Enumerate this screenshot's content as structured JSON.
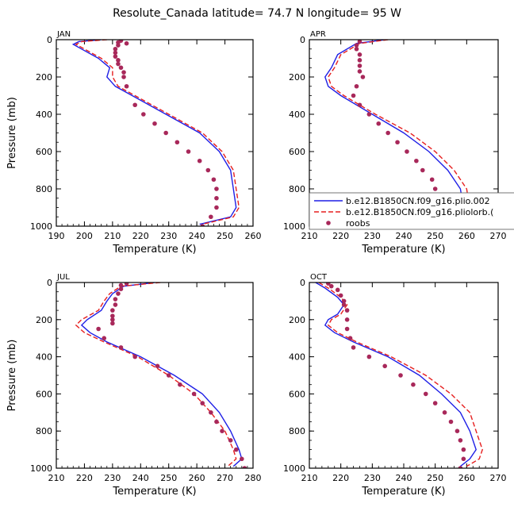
{
  "title": "Resolute_Canada   latitude= 74.7 N longitude= 95 W",
  "colors": {
    "model1": "#1f1fe6",
    "model2": "#e61f1f",
    "roobs": "#a8285a"
  },
  "legend": {
    "entries": [
      {
        "label": "b.e12.B1850CN.f09_g16.plio.002",
        "style": "solid",
        "color": "#1f1fe6"
      },
      {
        "label": "b.e12.B1850CN.f09_g16.pliolorb.(",
        "style": "dashed",
        "color": "#e61f1f"
      },
      {
        "label": "roobs",
        "style": "dots",
        "color": "#a8285a"
      }
    ]
  },
  "chart_data": [
    {
      "type": "line",
      "month": "JAN",
      "xlabel": "Temperature (K)",
      "ylabel": "Pressure (mb)",
      "xlim": [
        190,
        260
      ],
      "ylim": [
        1000,
        0
      ],
      "xticks": [
        190,
        200,
        210,
        220,
        230,
        240,
        250,
        260
      ],
      "yticks": [
        0,
        200,
        400,
        600,
        800,
        1000
      ],
      "series": [
        {
          "name": "b.e12.B1850CN.f09_g16.plio.002",
          "style": "solid",
          "points": [
            [
              206,
              0
            ],
            [
              198,
              10
            ],
            [
              196,
              25
            ],
            [
              199,
              50
            ],
            [
              205,
              100
            ],
            [
              209,
              150
            ],
            [
              208,
              200
            ],
            [
              211,
              250
            ],
            [
              217,
              300
            ],
            [
              229,
              400
            ],
            [
              241,
              500
            ],
            [
              248,
              600
            ],
            [
              252,
              700
            ],
            [
              253,
              800
            ],
            [
              254,
              900
            ],
            [
              252,
              950
            ],
            [
              241,
              990
            ]
          ]
        },
        {
          "name": "b.e12.B1850CN.f09_g16.pliolorb.(",
          "style": "dashed",
          "points": [
            [
              208,
              0
            ],
            [
              199,
              10
            ],
            [
              197,
              25
            ],
            [
              200,
              50
            ],
            [
              206,
              100
            ],
            [
              210,
              150
            ],
            [
              210,
              200
            ],
            [
              212,
              250
            ],
            [
              218,
              300
            ],
            [
              230,
              400
            ],
            [
              242,
              500
            ],
            [
              249,
              600
            ],
            [
              253,
              700
            ],
            [
              254,
              800
            ],
            [
              255,
              900
            ],
            [
              253,
              950
            ],
            [
              242,
              990
            ]
          ]
        },
        {
          "name": "roobs",
          "style": "dots",
          "points": [
            [
              212,
              15
            ],
            [
              212,
              30
            ],
            [
              211,
              50
            ],
            [
              211,
              70
            ],
            [
              211,
              90
            ],
            [
              212,
              110
            ],
            [
              212,
              130
            ],
            [
              213,
              150
            ],
            [
              214,
              175
            ],
            [
              214,
              200
            ],
            [
              215,
              250
            ],
            [
              218,
              350
            ],
            [
              221,
              400
            ],
            [
              225,
              450
            ],
            [
              229,
              500
            ],
            [
              233,
              550
            ],
            [
              237,
              600
            ],
            [
              241,
              650
            ],
            [
              244,
              700
            ],
            [
              246,
              750
            ],
            [
              247,
              800
            ],
            [
              247,
              850
            ],
            [
              247,
              900
            ],
            [
              245,
              950
            ],
            [
              242,
              1000
            ],
            [
              213,
              5
            ],
            [
              215,
              20
            ]
          ]
        }
      ]
    },
    {
      "type": "line",
      "month": "APR",
      "xlabel": "Temperature (K)",
      "ylabel": "",
      "xlim": [
        210,
        270
      ],
      "ylim": [
        1000,
        0
      ],
      "xticks": [
        210,
        220,
        230,
        240,
        250,
        260,
        270
      ],
      "yticks": [
        0,
        200,
        400,
        600,
        800,
        1000
      ],
      "series": [
        {
          "name": "b.e12.B1850CN.f09_g16.plio.002",
          "style": "solid",
          "points": [
            [
              234,
              0
            ],
            [
              225,
              20
            ],
            [
              219,
              80
            ],
            [
              217,
              150
            ],
            [
              215,
              200
            ],
            [
              216,
              250
            ],
            [
              220,
              300
            ],
            [
              230,
              400
            ],
            [
              240,
              500
            ],
            [
              248,
              600
            ],
            [
              254,
              700
            ],
            [
              258,
              800
            ],
            [
              259,
              900
            ],
            [
              258,
              950
            ],
            [
              254,
              990
            ]
          ]
        },
        {
          "name": "b.e12.B1850CN.f09_g16.pliolorb.(",
          "style": "dashed",
          "points": [
            [
              235,
              0
            ],
            [
              226,
              20
            ],
            [
              220,
              80
            ],
            [
              218,
              150
            ],
            [
              216,
              200
            ],
            [
              217,
              250
            ],
            [
              221,
              300
            ],
            [
              231,
              400
            ],
            [
              242,
              500
            ],
            [
              250,
              600
            ],
            [
              256,
              700
            ],
            [
              260,
              800
            ],
            [
              261,
              900
            ],
            [
              260,
              950
            ],
            [
              256,
              990
            ]
          ]
        },
        {
          "name": "roobs",
          "style": "dots",
          "points": [
            [
              226,
              10
            ],
            [
              225,
              30
            ],
            [
              225,
              50
            ],
            [
              226,
              80
            ],
            [
              226,
              110
            ],
            [
              226,
              140
            ],
            [
              226,
              170
            ],
            [
              227,
              200
            ],
            [
              225,
              250
            ],
            [
              224,
              300
            ],
            [
              226,
              350
            ],
            [
              229,
              400
            ],
            [
              232,
              450
            ],
            [
              235,
              500
            ],
            [
              238,
              550
            ],
            [
              241,
              600
            ],
            [
              244,
              650
            ],
            [
              246,
              700
            ],
            [
              249,
              750
            ],
            [
              250,
              800
            ],
            [
              251,
              850
            ],
            [
              251,
              900
            ],
            [
              251,
              950
            ],
            [
              251,
              1000
            ]
          ]
        }
      ]
    },
    {
      "type": "line",
      "month": "JUL",
      "xlabel": "Temperature (K)",
      "ylabel": "Pressure (mb)",
      "xlim": [
        210,
        280
      ],
      "ylim": [
        1000,
        0
      ],
      "xticks": [
        210,
        220,
        230,
        240,
        250,
        260,
        270,
        280
      ],
      "yticks": [
        0,
        200,
        400,
        600,
        800,
        1000
      ],
      "series": [
        {
          "name": "b.e12.B1850CN.f09_g16.plio.002",
          "style": "solid",
          "points": [
            [
              245,
              0
            ],
            [
              234,
              20
            ],
            [
              230,
              60
            ],
            [
              228,
              100
            ],
            [
              226,
              150
            ],
            [
              221,
              200
            ],
            [
              219,
              230
            ],
            [
              222,
              270
            ],
            [
              228,
              320
            ],
            [
              240,
              400
            ],
            [
              252,
              500
            ],
            [
              262,
              600
            ],
            [
              268,
              700
            ],
            [
              272,
              800
            ],
            [
              275,
              900
            ],
            [
              276,
              950
            ],
            [
              273,
              990
            ]
          ]
        },
        {
          "name": "b.e12.B1850CN.f09_g16.pliolorb.(",
          "style": "dashed",
          "points": [
            [
              247,
              0
            ],
            [
              233,
              20
            ],
            [
              229,
              60
            ],
            [
              227,
              100
            ],
            [
              225,
              150
            ],
            [
              219,
              200
            ],
            [
              217,
              230
            ],
            [
              220,
              270
            ],
            [
              227,
              320
            ],
            [
              239,
              400
            ],
            [
              250,
              500
            ],
            [
              259,
              600
            ],
            [
              265,
              700
            ],
            [
              270,
              800
            ],
            [
              273,
              900
            ],
            [
              274,
              950
            ],
            [
              271,
              990
            ]
          ]
        },
        {
          "name": "roobs",
          "style": "dots",
          "points": [
            [
              235,
              5
            ],
            [
              233,
              15
            ],
            [
              233,
              35
            ],
            [
              232,
              60
            ],
            [
              231,
              90
            ],
            [
              231,
              120
            ],
            [
              230,
              150
            ],
            [
              230,
              180
            ],
            [
              230,
              200
            ],
            [
              230,
              220
            ],
            [
              225,
              250
            ],
            [
              227,
              300
            ],
            [
              233,
              350
            ],
            [
              238,
              400
            ],
            [
              246,
              450
            ],
            [
              250,
              500
            ],
            [
              254,
              550
            ],
            [
              259,
              600
            ],
            [
              262,
              650
            ],
            [
              265,
              700
            ],
            [
              267,
              750
            ],
            [
              269,
              800
            ],
            [
              272,
              850
            ],
            [
              274,
              900
            ],
            [
              276,
              950
            ],
            [
              277,
              1000
            ]
          ]
        }
      ]
    },
    {
      "type": "line",
      "month": "OCT",
      "xlabel": "Temperature (K)",
      "ylabel": "",
      "xlim": [
        210,
        270
      ],
      "ylim": [
        1000,
        0
      ],
      "xticks": [
        210,
        220,
        230,
        240,
        250,
        260,
        270
      ],
      "yticks": [
        0,
        200,
        400,
        600,
        800,
        1000
      ],
      "series": [
        {
          "name": "b.e12.B1850CN.f09_g16.plio.002",
          "style": "solid",
          "points": [
            [
              212,
              0
            ],
            [
              215,
              30
            ],
            [
              219,
              80
            ],
            [
              221,
              120
            ],
            [
              219,
              170
            ],
            [
              216,
              200
            ],
            [
              215,
              230
            ],
            [
              218,
              270
            ],
            [
              224,
              320
            ],
            [
              235,
              400
            ],
            [
              245,
              500
            ],
            [
              252,
              600
            ],
            [
              258,
              700
            ],
            [
              261,
              800
            ],
            [
              263,
              900
            ],
            [
              261,
              950
            ],
            [
              258,
              990
            ]
          ]
        },
        {
          "name": "b.e12.B1850CN.f09_g16.pliolorb.(",
          "style": "dashed",
          "points": [
            [
              213,
              0
            ],
            [
              216,
              30
            ],
            [
              220,
              80
            ],
            [
              222,
              120
            ],
            [
              220,
              170
            ],
            [
              217,
              200
            ],
            [
              216,
              230
            ],
            [
              219,
              270
            ],
            [
              225,
              320
            ],
            [
              236,
              400
            ],
            [
              247,
              500
            ],
            [
              255,
              600
            ],
            [
              261,
              700
            ],
            [
              263,
              800
            ],
            [
              265,
              900
            ],
            [
              264,
              950
            ],
            [
              260,
              990
            ]
          ]
        },
        {
          "name": "roobs",
          "style": "dots",
          "points": [
            [
              216,
              5
            ],
            [
              217,
              20
            ],
            [
              219,
              40
            ],
            [
              220,
              70
            ],
            [
              221,
              100
            ],
            [
              221,
              120
            ],
            [
              222,
              150
            ],
            [
              222,
              200
            ],
            [
              222,
              250
            ],
            [
              223,
              300
            ],
            [
              224,
              350
            ],
            [
              229,
              400
            ],
            [
              234,
              450
            ],
            [
              239,
              500
            ],
            [
              243,
              550
            ],
            [
              247,
              600
            ],
            [
              250,
              650
            ],
            [
              253,
              700
            ],
            [
              255,
              750
            ],
            [
              257,
              800
            ],
            [
              258,
              850
            ],
            [
              259,
              900
            ],
            [
              259,
              950
            ],
            [
              258,
              1000
            ]
          ]
        }
      ]
    }
  ]
}
